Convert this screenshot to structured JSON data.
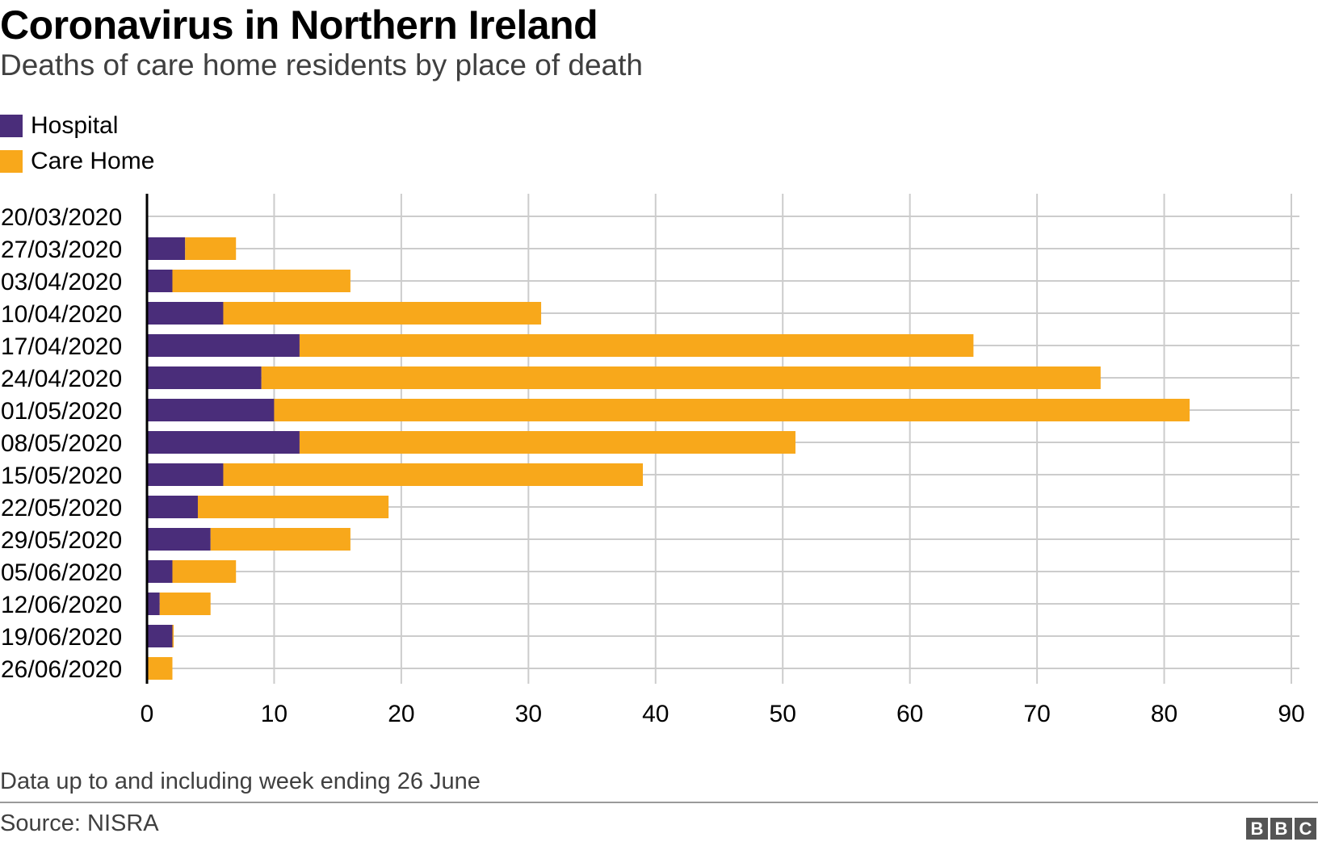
{
  "title": "Coronavirus in Northern Ireland",
  "subtitle": "Deaths of care home residents by place of death",
  "footnote": "Data up to and including week ending 26 June",
  "source": "Source: NISRA",
  "logo": {
    "letters": [
      "B",
      "B",
      "C"
    ],
    "color": "#555555"
  },
  "colors": {
    "hospital": "#4a2d7a",
    "care_home": "#f8a81b",
    "grid": "#cccccc",
    "axis": "#000000"
  },
  "chart_data": {
    "type": "bar",
    "orientation": "horizontal",
    "stacked": true,
    "categories": [
      "20/03/2020",
      "27/03/2020",
      "03/04/2020",
      "10/04/2020",
      "17/04/2020",
      "24/04/2020",
      "01/05/2020",
      "08/05/2020",
      "15/05/2020",
      "22/05/2020",
      "29/05/2020",
      "05/06/2020",
      "12/06/2020",
      "19/06/2020",
      "26/06/2020"
    ],
    "series": [
      {
        "name": "Hospital",
        "color": "#4a2d7a",
        "values": [
          0,
          3,
          2,
          6,
          12,
          9,
          10,
          12,
          6,
          4,
          5,
          2,
          1,
          2,
          0
        ]
      },
      {
        "name": "Care Home",
        "color": "#f8a81b",
        "values": [
          0,
          4,
          14,
          25,
          53,
          66,
          72,
          39,
          33,
          15,
          11,
          5,
          4,
          0.1,
          2
        ]
      }
    ],
    "xlim": [
      0,
      90
    ],
    "xticks": [
      "0",
      "10",
      "20",
      "30",
      "40",
      "50",
      "60",
      "70",
      "80",
      "90"
    ],
    "grid": true,
    "legend": "top-left",
    "xlabel": "",
    "ylabel": ""
  }
}
